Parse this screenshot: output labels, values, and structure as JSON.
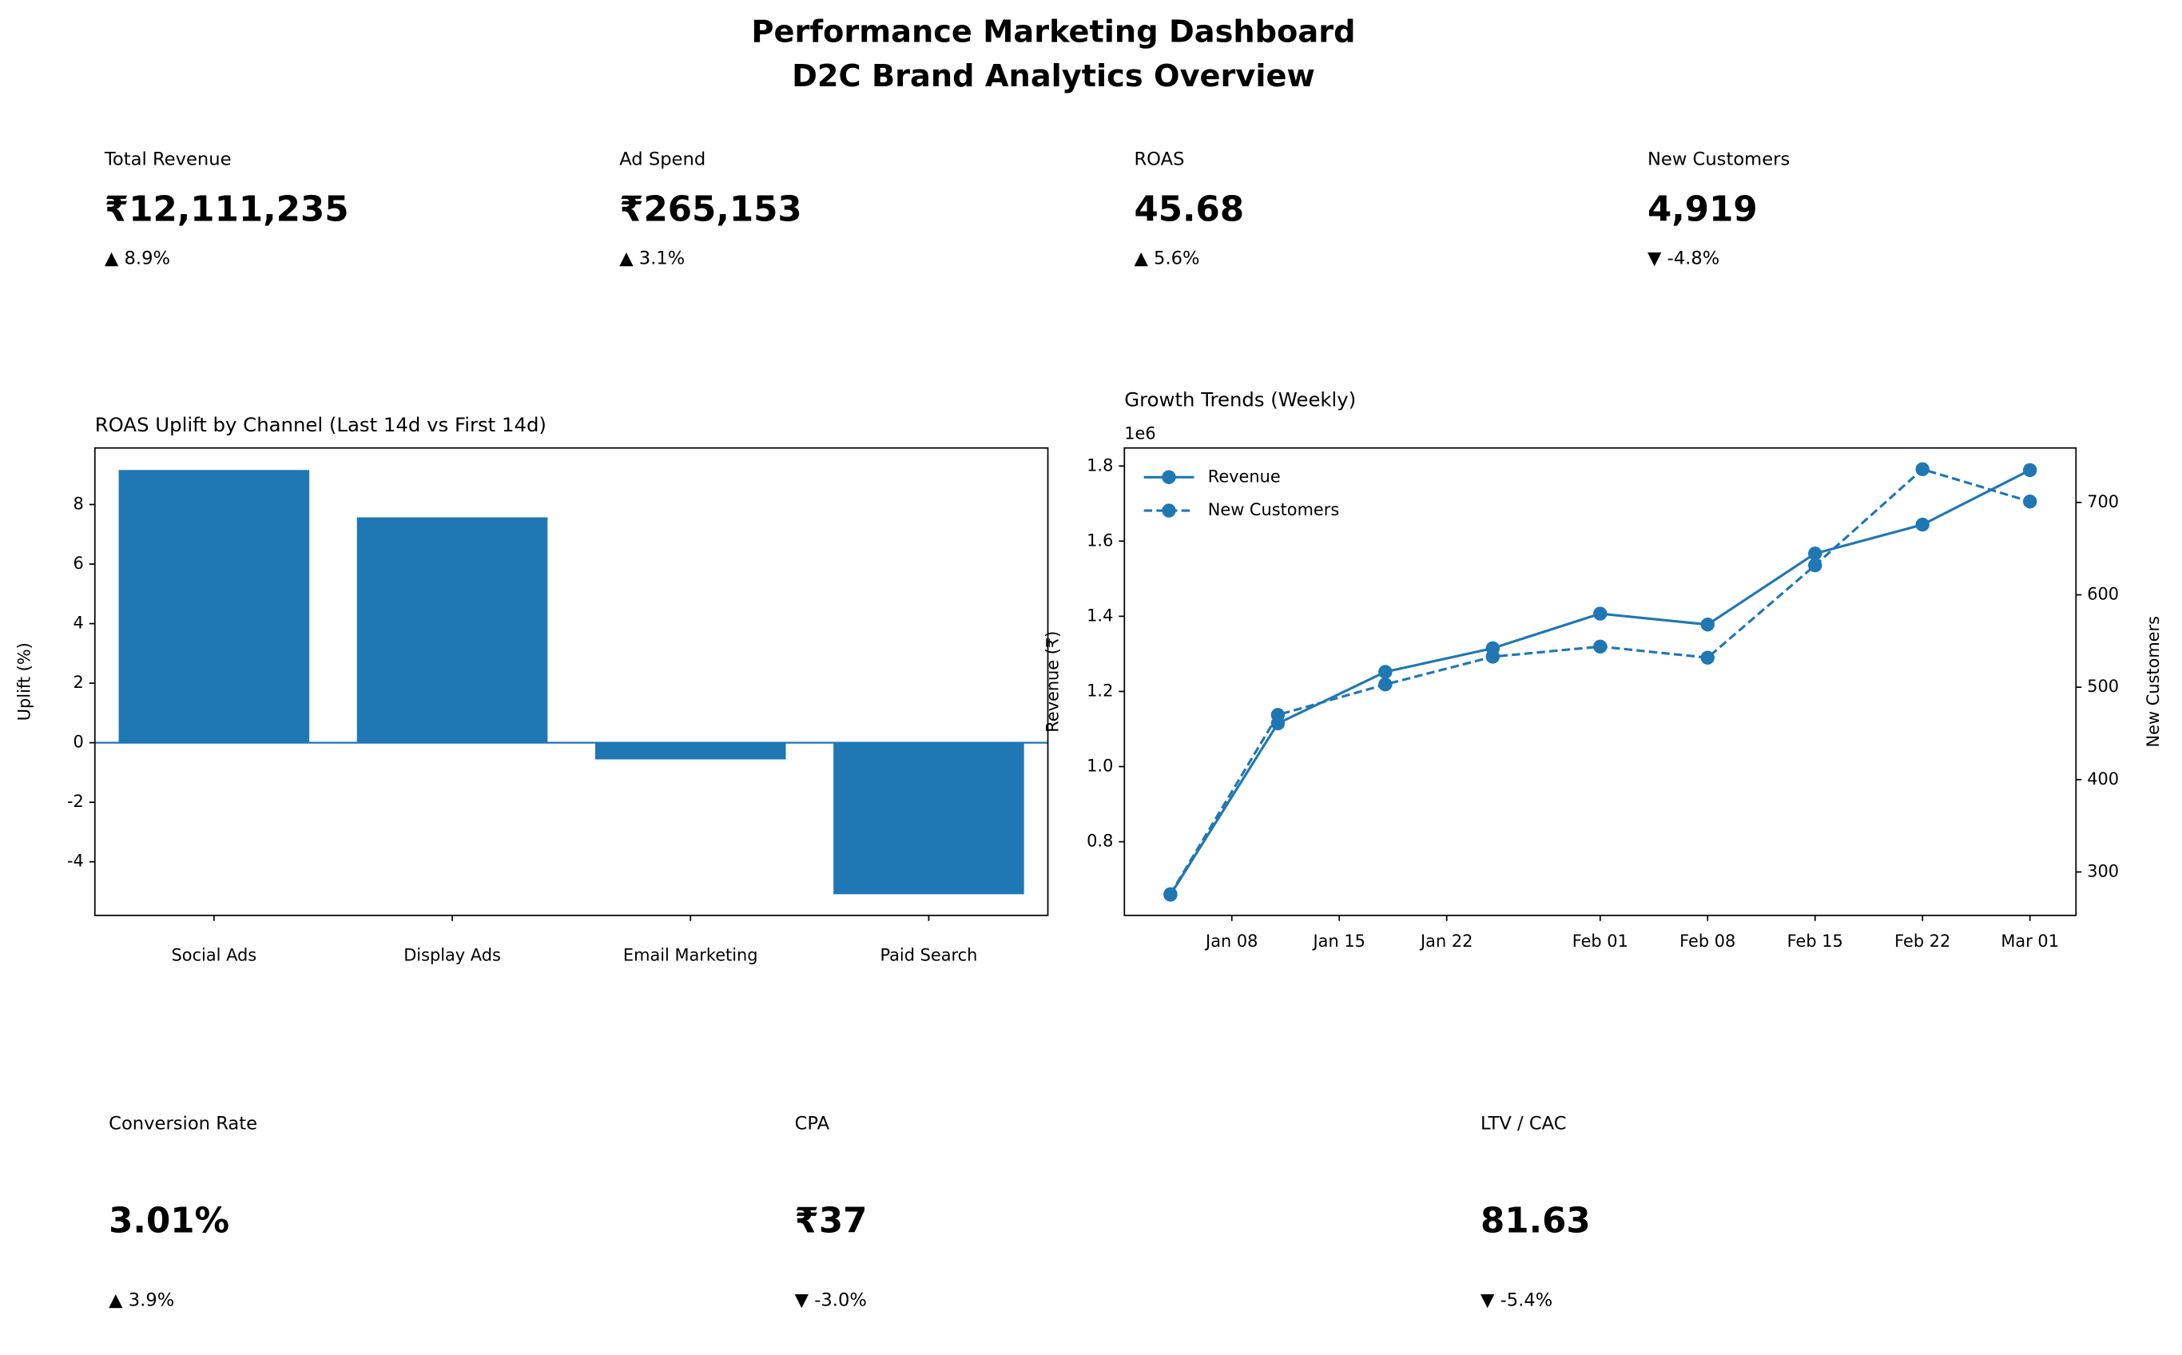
{
  "header": {
    "title": "Performance Marketing Dashboard",
    "subtitle": "D2C Brand Analytics Overview"
  },
  "kpis": [
    {
      "label": "Total Revenue",
      "value": "₹12,111,235",
      "delta": "▲ 8.9%"
    },
    {
      "label": "Ad Spend",
      "value": "₹265,153",
      "delta": "▲ 3.1%"
    },
    {
      "label": "ROAS",
      "value": "45.68",
      "delta": "▲ 5.6%"
    },
    {
      "label": "New Customers",
      "value": "4,919",
      "delta": "▼ -4.8%"
    },
    {
      "label": "Conversion Rate",
      "value": "3.01%",
      "delta": "▲ 3.9%"
    },
    {
      "label": "CPA",
      "value": "₹37",
      "delta": "▼ -3.0%"
    },
    {
      "label": "LTV / CAC",
      "value": "81.63",
      "delta": "▼ -5.4%"
    }
  ],
  "chart_data": [
    {
      "type": "bar",
      "title": "ROAS Uplift by Channel (Last 14d vs First 14d)",
      "ylabel": "Uplift (%)",
      "categories": [
        "Social Ads",
        "Display Ads",
        "Email Marketing",
        "Paid Search"
      ],
      "values": [
        9.16,
        7.57,
        -0.56,
        -5.09
      ],
      "color": "#1f77b4",
      "ylim": [
        -5.8,
        9.9
      ],
      "yticks": [
        -4,
        -2,
        0,
        2,
        4,
        6,
        8
      ]
    },
    {
      "type": "line",
      "title": "Growth Trends (Weekly)",
      "ylabel": "Revenue (₹)",
      "y2label": "New Customers",
      "y_offset_label": "1e6",
      "x": [
        "Jan 04",
        "Jan 11",
        "Jan 18",
        "Jan 25",
        "Feb 01",
        "Feb 08",
        "Feb 15",
        "Feb 22",
        "Mar 01"
      ],
      "xlim": [
        "Jan 01",
        "Mar 04"
      ],
      "xticks": [
        "Jan 08",
        "Jan 15",
        "Jan 22",
        "Feb 01",
        "Feb 08",
        "Feb 15",
        "Feb 22",
        "Mar 01"
      ],
      "ylim": [
        0.604,
        1.848
      ],
      "yticks": [
        0.8,
        {
          "value": 1,
          "label": "1.0"
        },
        1.2,
        1.4,
        1.6,
        1.8
      ],
      "y2lim": [
        253,
        759
      ],
      "y2ticks": [
        300,
        400,
        500,
        600,
        700
      ],
      "legend": "upper left",
      "series": [
        {
          "name": "Revenue",
          "color": "#1f77b4",
          "linestyle": "solid",
          "values": [
            0.659,
            1.115,
            1.252,
            1.315,
            1.407,
            1.378,
            1.567,
            1.644,
            1.789
          ]
        },
        {
          "name": "New Customers",
          "color": "#1f77b4",
          "linestyle": "dashed",
          "axis": "y2",
          "values": [
            276,
            470,
            503,
            533,
            544,
            532,
            632,
            736,
            701
          ]
        }
      ]
    }
  ]
}
